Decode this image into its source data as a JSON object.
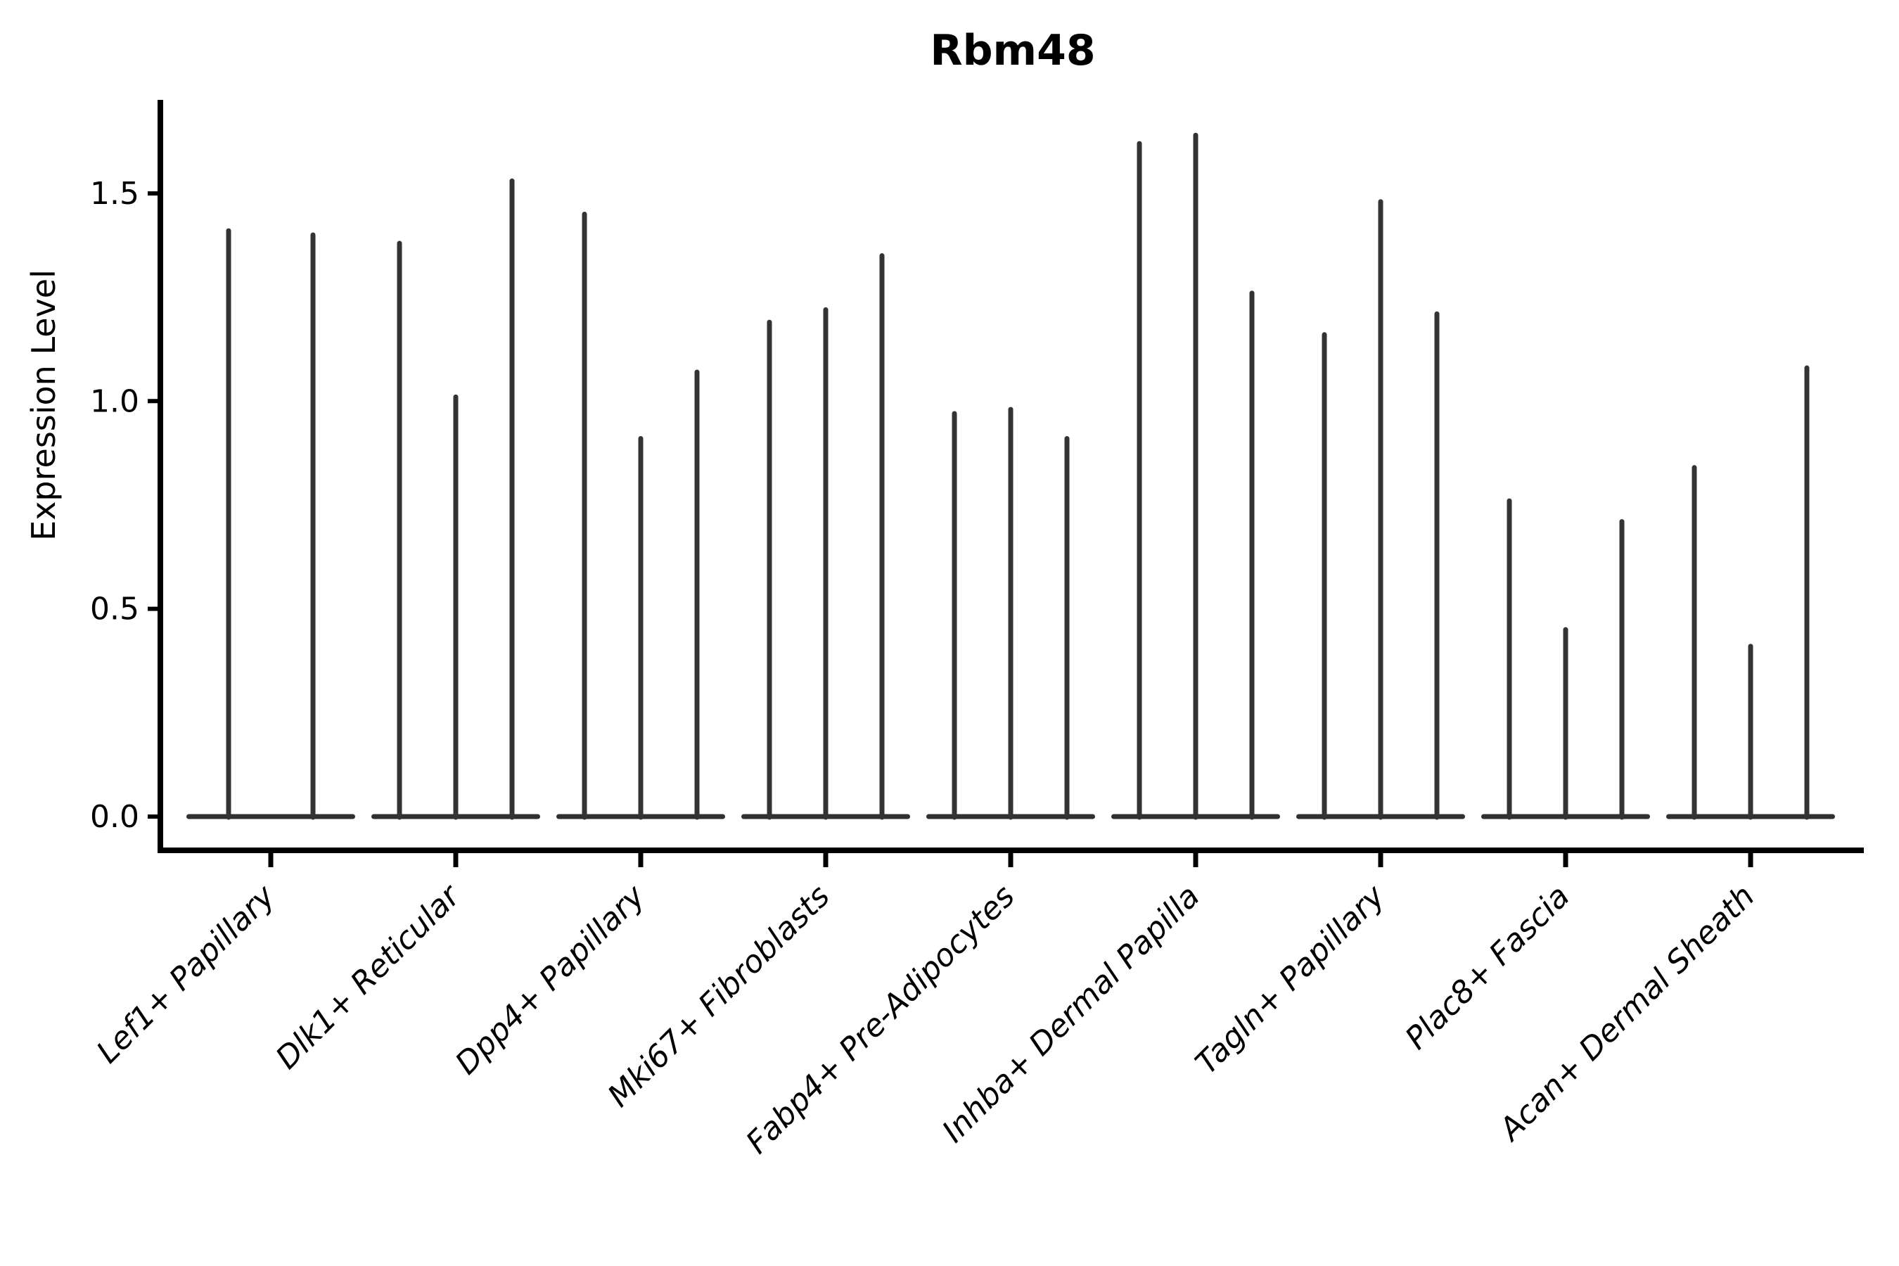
{
  "chart_data": {
    "type": "violin",
    "title": "Rbm48",
    "ylabel": "Expression Level",
    "xlabel": "",
    "ylim": [
      0.0,
      1.72
    ],
    "yticks": [
      0.0,
      0.5,
      1.0,
      1.5
    ],
    "ytick_labels": [
      "0.0",
      "0.5",
      "1.0",
      "1.5"
    ],
    "grid": false,
    "legend": "none",
    "note": "Each category shows thin violins (mostly-zero expression); values below are the max expression reached by each violin spike, left to right.",
    "categories": [
      "Lef1+ Papillary",
      "Dlk1+ Reticular",
      "Dpp4+ Papillary",
      "Mki67+ Fibroblasts",
      "Fabp4+ Pre-Adipocytes",
      "Inhba+ Dermal Papilla",
      "Tagln+ Papillary",
      "Plac8+ Fascia",
      "Acan+ Dermal Sheath"
    ],
    "groups": [
      {
        "category": "Lef1+ Papillary",
        "violin_maxima": [
          1.41,
          1.4
        ]
      },
      {
        "category": "Dlk1+ Reticular",
        "violin_maxima": [
          1.38,
          1.01,
          1.53
        ]
      },
      {
        "category": "Dpp4+ Papillary",
        "violin_maxima": [
          1.45,
          0.91,
          1.07
        ]
      },
      {
        "category": "Mki67+ Fibroblasts",
        "violin_maxima": [
          1.19,
          1.22,
          1.35
        ]
      },
      {
        "category": "Fabp4+ Pre-Adipocytes",
        "violin_maxima": [
          0.97,
          0.98,
          0.91
        ]
      },
      {
        "category": "Inhba+ Dermal Papilla",
        "violin_maxima": [
          1.62,
          1.64,
          1.26
        ]
      },
      {
        "category": "Tagln+ Papillary",
        "violin_maxima": [
          1.16,
          1.48,
          1.21
        ]
      },
      {
        "category": "Plac8+ Fascia",
        "violin_maxima": [
          0.76,
          0.45,
          0.71
        ]
      },
      {
        "category": "Acan+ Dermal Sheath",
        "violin_maxima": [
          0.84,
          0.41,
          1.08
        ]
      }
    ],
    "colors": {
      "violin_stroke": "#333333",
      "violin_base": "#303030",
      "axis": "#000000",
      "text": "#000000",
      "background": "#ffffff"
    }
  }
}
